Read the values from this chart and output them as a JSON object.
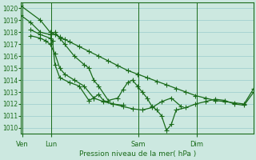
{
  "bg_color": "#cce8e0",
  "grid_color": "#99cccc",
  "line_color": "#1a6b1a",
  "ylim": [
    1009.5,
    1020.5
  ],
  "yticks": [
    1010,
    1011,
    1012,
    1013,
    1014,
    1015,
    1016,
    1017,
    1018,
    1019,
    1020
  ],
  "xlabel": "Pression niveau de la mer( hPa )",
  "day_labels": [
    "Ven",
    "Lun",
    "Sam",
    "Dim"
  ],
  "day_positions": [
    0.5,
    12.5,
    48.5,
    72.5
  ],
  "xlim": [
    0,
    96
  ],
  "series": {
    "s1": {
      "x": [
        0,
        8,
        12,
        14,
        16,
        18,
        20,
        24,
        28,
        32,
        36,
        40,
        44,
        48,
        52,
        56,
        60,
        64,
        68,
        72,
        76,
        80,
        84,
        88,
        92,
        96
      ],
      "y": [
        1020.2,
        1019.0,
        1018.0,
        1017.8,
        1017.6,
        1017.4,
        1017.2,
        1016.8,
        1016.4,
        1016.0,
        1015.6,
        1015.2,
        1014.8,
        1014.5,
        1014.2,
        1013.9,
        1013.6,
        1013.3,
        1013.0,
        1012.7,
        1012.5,
        1012.3,
        1012.2,
        1012.1,
        1012.0,
        1013.3
      ]
    },
    "s2": {
      "x": [
        0,
        4,
        8,
        12,
        14,
        16,
        18,
        22,
        26,
        28,
        30,
        32,
        36,
        40,
        42,
        44,
        46,
        48,
        50,
        52,
        54,
        56,
        58,
        60,
        62,
        64,
        68,
        72,
        76,
        80,
        84,
        88,
        92,
        96
      ],
      "y": [
        1019.4,
        1018.8,
        1018.0,
        1017.8,
        1018.0,
        1017.5,
        1017.0,
        1016.0,
        1015.3,
        1015.0,
        1014.0,
        1013.5,
        1012.3,
        1012.5,
        1013.2,
        1013.8,
        1014.0,
        1013.5,
        1013.0,
        1012.5,
        1011.8,
        1011.5,
        1011.0,
        1009.8,
        1010.3,
        1011.5,
        1011.7,
        1012.0,
        1012.2,
        1012.4,
        1012.3,
        1012.0,
        1011.9,
        1013.0
      ]
    },
    "s3": {
      "x": [
        4,
        8,
        12,
        13,
        14,
        16,
        20,
        24,
        28,
        30,
        32,
        34,
        38,
        42,
        46,
        50,
        54,
        58,
        62,
        66
      ],
      "y": [
        1018.2,
        1017.8,
        1017.5,
        1017.3,
        1015.3,
        1014.2,
        1013.8,
        1013.5,
        1012.3,
        1012.5,
        1012.8,
        1012.3,
        1012.0,
        1011.8,
        1011.6,
        1011.5,
        1011.7,
        1012.2,
        1012.5,
        1011.8
      ]
    },
    "s4": {
      "x": [
        4,
        8,
        10,
        12,
        14,
        16,
        18,
        22,
        26,
        30,
        34,
        38,
        42
      ],
      "y": [
        1017.7,
        1017.5,
        1017.3,
        1017.0,
        1016.2,
        1015.0,
        1014.5,
        1014.0,
        1013.5,
        1012.5,
        1012.2,
        1012.0,
        1011.9
      ]
    }
  },
  "marker_size": 4,
  "linewidth": 0.9
}
